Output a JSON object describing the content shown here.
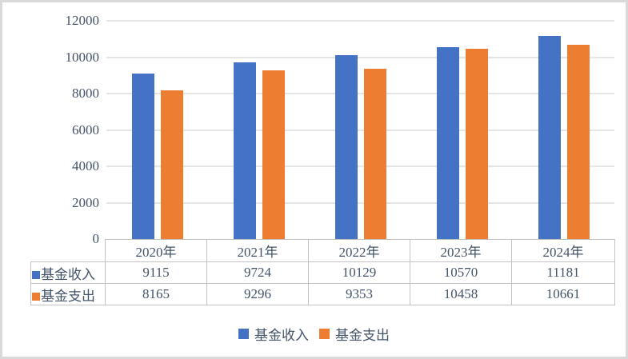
{
  "chart_data": {
    "type": "bar",
    "title": "",
    "xlabel": "",
    "ylabel": "",
    "categories": [
      "2020年",
      "2021年",
      "2022年",
      "2023年",
      "2024年"
    ],
    "series": [
      {
        "name": "基金收入",
        "color": "#4472C4",
        "values": [
          9115,
          9724,
          10129,
          10570,
          11181
        ]
      },
      {
        "name": "基金支出",
        "color": "#ED7D31",
        "values": [
          8165,
          9296,
          9353,
          10458,
          10661
        ]
      }
    ],
    "ylim": [
      0,
      12000
    ],
    "yticks": [
      0,
      2000,
      4000,
      6000,
      8000,
      10000,
      12000
    ],
    "ytick_labels": [
      "0",
      "2000",
      "4000",
      "6000",
      "8000",
      "10000",
      "12000"
    ],
    "grid": true,
    "legend_position": "bottom",
    "data_table_shown": true
  },
  "colors": {
    "frame": "#D9D9D9",
    "grid": "#E5E5E5",
    "table_border": "#C3C3C3",
    "text": "#44546A",
    "background": "#FFFFFF"
  }
}
